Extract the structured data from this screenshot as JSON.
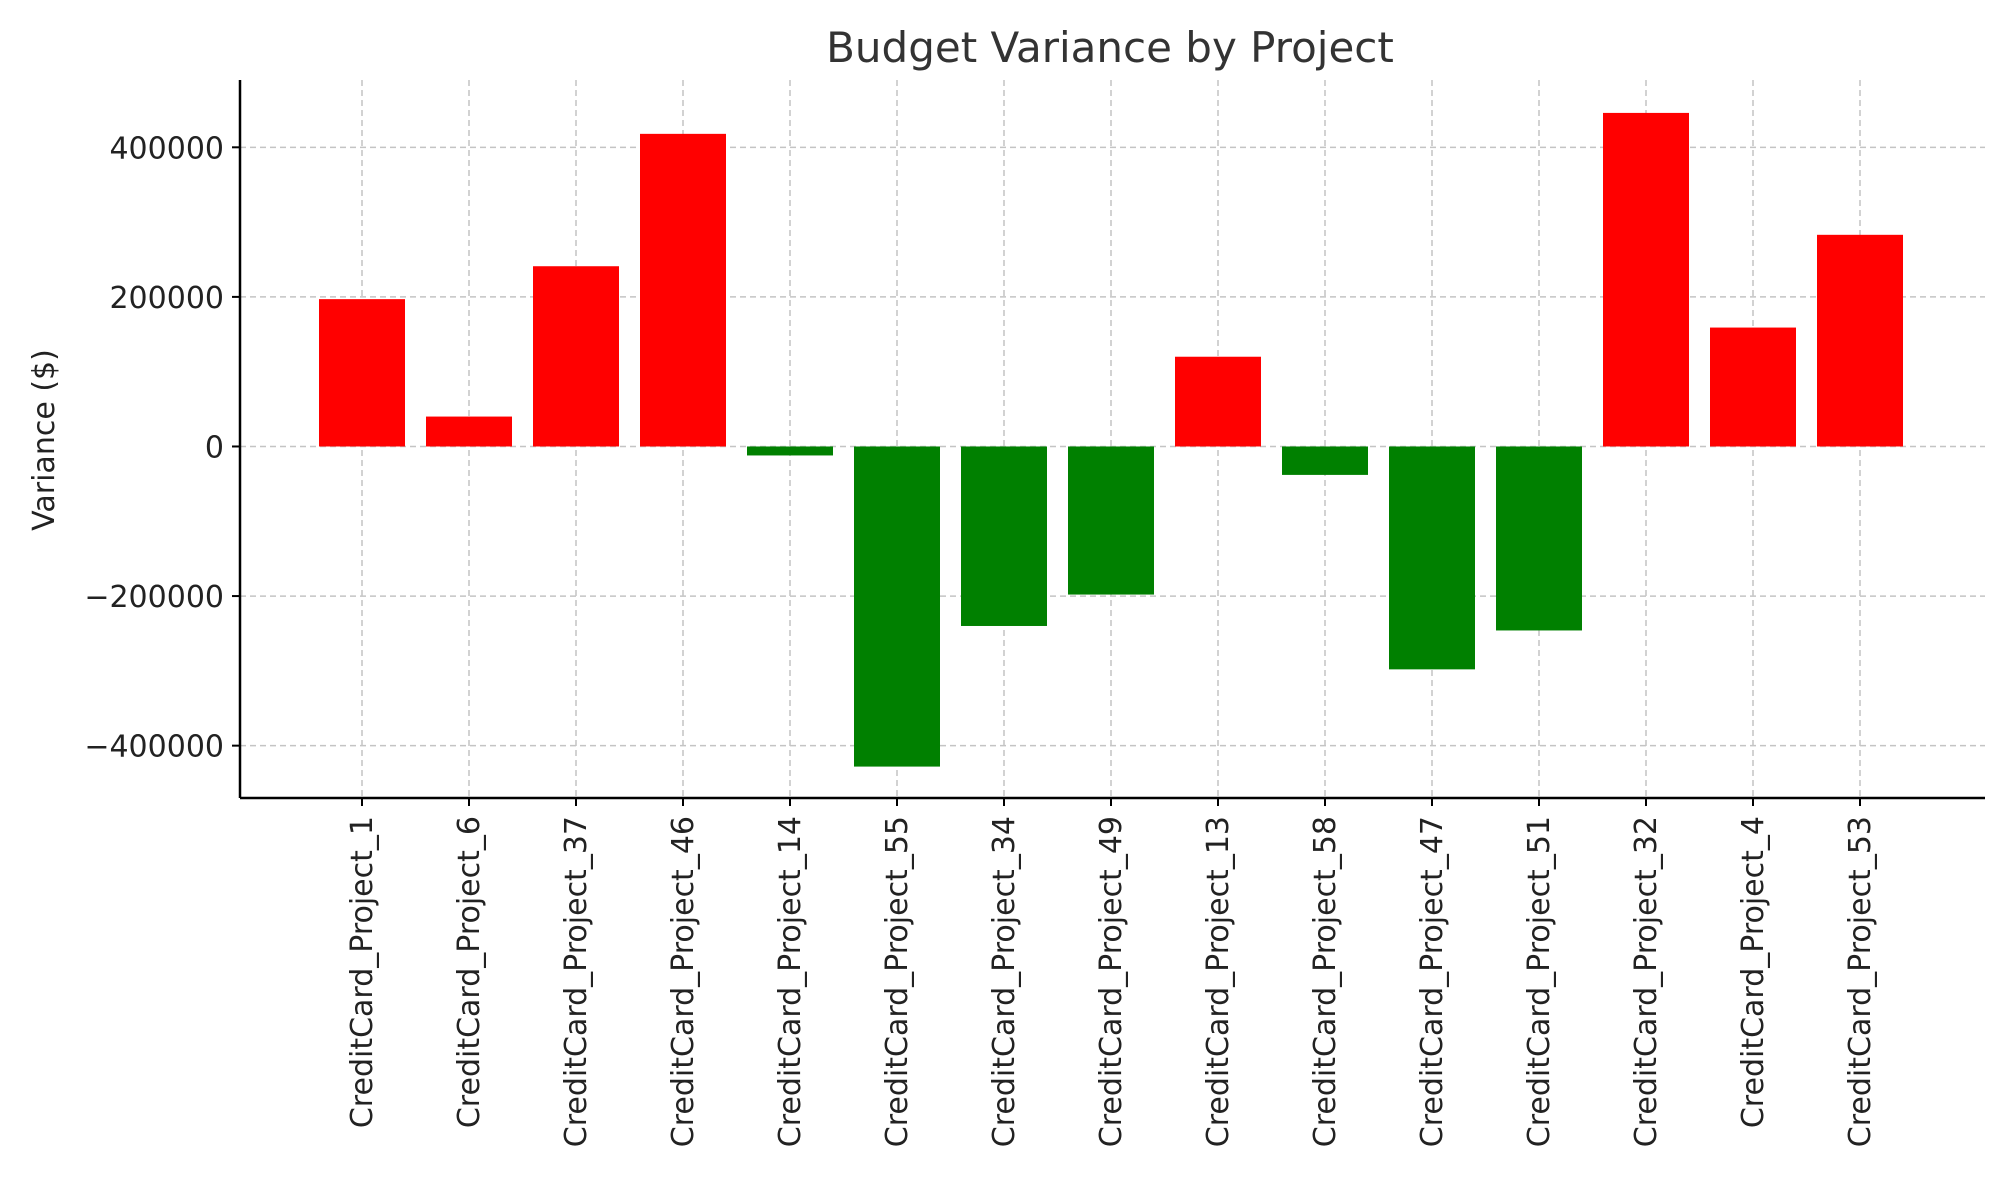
{
  "chart_data": {
    "type": "bar",
    "title": "Budget Variance by Project",
    "xlabel": "",
    "ylabel": "Variance ($)",
    "categories": [
      "CreditCard_Project_1",
      "CreditCard_Project_6",
      "CreditCard_Project_37",
      "CreditCard_Project_46",
      "CreditCard_Project_14",
      "CreditCard_Project_55",
      "CreditCard_Project_34",
      "CreditCard_Project_49",
      "CreditCard_Project_13",
      "CreditCard_Project_58",
      "CreditCard_Project_47",
      "CreditCard_Project_51",
      "CreditCard_Project_32",
      "CreditCard_Project_4",
      "CreditCard_Project_53"
    ],
    "values": [
      197000,
      40000,
      241000,
      418000,
      -12000,
      -428000,
      -240000,
      -198000,
      120000,
      -38000,
      -298000,
      -246000,
      446000,
      159000,
      283000
    ],
    "ylim": [
      -470000,
      490000
    ],
    "yticks": [
      -400000,
      -200000,
      0,
      200000,
      400000
    ],
    "ytick_labels": [
      "−400000",
      "−200000",
      "0",
      "200000",
      "400000"
    ],
    "grid": true,
    "colors": {
      "positive": "#ff0000",
      "negative": "#008000"
    }
  }
}
